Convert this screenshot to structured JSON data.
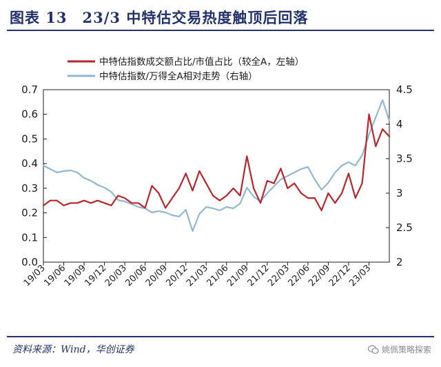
{
  "header": {
    "title": "图表 13　23/3 中特估交易热度触顶后回落"
  },
  "footer": {
    "source": "资料来源：Wind，华创证券",
    "watermark": "姚佩策略探索"
  },
  "colors": {
    "title_blue": "#22306b",
    "series_red": "#b8252b",
    "series_blue": "#92b7d1"
  },
  "icons": {
    "watermark": "wechat-icon"
  },
  "chart_data": {
    "type": "line",
    "title": "",
    "left_axis": {
      "min": 0.0,
      "max": 0.7,
      "ticks": [
        "0.0",
        "0.1",
        "0.2",
        "0.3",
        "0.4",
        "0.5",
        "0.6",
        "0.7"
      ]
    },
    "right_axis": {
      "min": 2,
      "max": 4.5,
      "ticks": [
        "2",
        "2.5",
        "3",
        "3.5",
        "4",
        "4.5"
      ]
    },
    "x_ticks": [
      "19/03",
      "19/06",
      "19/09",
      "19/12",
      "20/03",
      "20/06",
      "20/09",
      "20/12",
      "21/03",
      "21/06",
      "21/09",
      "21/12",
      "22/03",
      "22/06",
      "22/09",
      "22/12",
      "23/03"
    ],
    "x_range": [
      "2019-03",
      "2023-06"
    ],
    "grid": false,
    "legend_position": "top-center",
    "series": [
      {
        "name": "中特估指数成交额占比/市值占比（较全A，左轴）",
        "axis": "left",
        "color": "#b8252b",
        "points": [
          [
            "2019-03",
            0.23
          ],
          [
            "2019-04",
            0.25
          ],
          [
            "2019-05",
            0.25
          ],
          [
            "2019-06",
            0.23
          ],
          [
            "2019-07",
            0.24
          ],
          [
            "2019-08",
            0.24
          ],
          [
            "2019-09",
            0.25
          ],
          [
            "2019-10",
            0.24
          ],
          [
            "2019-11",
            0.25
          ],
          [
            "2019-12",
            0.24
          ],
          [
            "2020-01",
            0.23
          ],
          [
            "2020-02",
            0.27
          ],
          [
            "2020-03",
            0.26
          ],
          [
            "2020-04",
            0.24
          ],
          [
            "2020-05",
            0.24
          ],
          [
            "2020-06",
            0.22
          ],
          [
            "2020-07",
            0.31
          ],
          [
            "2020-08",
            0.28
          ],
          [
            "2020-09",
            0.22
          ],
          [
            "2020-10",
            0.26
          ],
          [
            "2020-11",
            0.3
          ],
          [
            "2020-12",
            0.36
          ],
          [
            "2021-01",
            0.29
          ],
          [
            "2021-02",
            0.37
          ],
          [
            "2021-03",
            0.32
          ],
          [
            "2021-04",
            0.27
          ],
          [
            "2021-05",
            0.25
          ],
          [
            "2021-06",
            0.27
          ],
          [
            "2021-07",
            0.3
          ],
          [
            "2021-08",
            0.27
          ],
          [
            "2021-09",
            0.43
          ],
          [
            "2021-10",
            0.3
          ],
          [
            "2021-11",
            0.24
          ],
          [
            "2021-12",
            0.33
          ],
          [
            "2022-01",
            0.32
          ],
          [
            "2022-02",
            0.38
          ],
          [
            "2022-03",
            0.3
          ],
          [
            "2022-04",
            0.32
          ],
          [
            "2022-05",
            0.28
          ],
          [
            "2022-06",
            0.26
          ],
          [
            "2022-07",
            0.26
          ],
          [
            "2022-08",
            0.21
          ],
          [
            "2022-09",
            0.28
          ],
          [
            "2022-10",
            0.24
          ],
          [
            "2022-11",
            0.28
          ],
          [
            "2022-12",
            0.36
          ],
          [
            "2023-01",
            0.26
          ],
          [
            "2023-02",
            0.32
          ],
          [
            "2023-03",
            0.6
          ],
          [
            "2023-04",
            0.47
          ],
          [
            "2023-05",
            0.54
          ],
          [
            "2023-06",
            0.51
          ]
        ]
      },
      {
        "name": "中特估指数/万得全A相对走势（右轴）",
        "axis": "right",
        "color": "#92b7d1",
        "points": [
          [
            "2019-03",
            3.4
          ],
          [
            "2019-04",
            3.35
          ],
          [
            "2019-05",
            3.3
          ],
          [
            "2019-06",
            3.32
          ],
          [
            "2019-07",
            3.33
          ],
          [
            "2019-08",
            3.3
          ],
          [
            "2019-09",
            3.22
          ],
          [
            "2019-10",
            3.18
          ],
          [
            "2019-11",
            3.12
          ],
          [
            "2019-12",
            3.08
          ],
          [
            "2020-01",
            3.02
          ],
          [
            "2020-02",
            2.9
          ],
          [
            "2020-03",
            2.88
          ],
          [
            "2020-04",
            2.84
          ],
          [
            "2020-05",
            2.8
          ],
          [
            "2020-06",
            2.78
          ],
          [
            "2020-07",
            2.72
          ],
          [
            "2020-08",
            2.74
          ],
          [
            "2020-09",
            2.72
          ],
          [
            "2020-10",
            2.68
          ],
          [
            "2020-11",
            2.66
          ],
          [
            "2020-12",
            2.76
          ],
          [
            "2021-01",
            2.45
          ],
          [
            "2021-02",
            2.7
          ],
          [
            "2021-03",
            2.8
          ],
          [
            "2021-04",
            2.78
          ],
          [
            "2021-05",
            2.75
          ],
          [
            "2021-06",
            2.8
          ],
          [
            "2021-07",
            2.78
          ],
          [
            "2021-08",
            2.85
          ],
          [
            "2021-09",
            3.08
          ],
          [
            "2021-10",
            2.95
          ],
          [
            "2021-11",
            2.88
          ],
          [
            "2021-12",
            3.0
          ],
          [
            "2022-01",
            3.1
          ],
          [
            "2022-02",
            3.2
          ],
          [
            "2022-03",
            3.25
          ],
          [
            "2022-04",
            3.3
          ],
          [
            "2022-05",
            3.35
          ],
          [
            "2022-06",
            3.38
          ],
          [
            "2022-07",
            3.2
          ],
          [
            "2022-08",
            3.05
          ],
          [
            "2022-09",
            3.15
          ],
          [
            "2022-10",
            3.3
          ],
          [
            "2022-11",
            3.4
          ],
          [
            "2022-12",
            3.45
          ],
          [
            "2023-01",
            3.4
          ],
          [
            "2023-02",
            3.55
          ],
          [
            "2023-03",
            3.85
          ],
          [
            "2023-04",
            4.1
          ],
          [
            "2023-05",
            4.35
          ],
          [
            "2023-06",
            4.05
          ]
        ]
      }
    ]
  }
}
